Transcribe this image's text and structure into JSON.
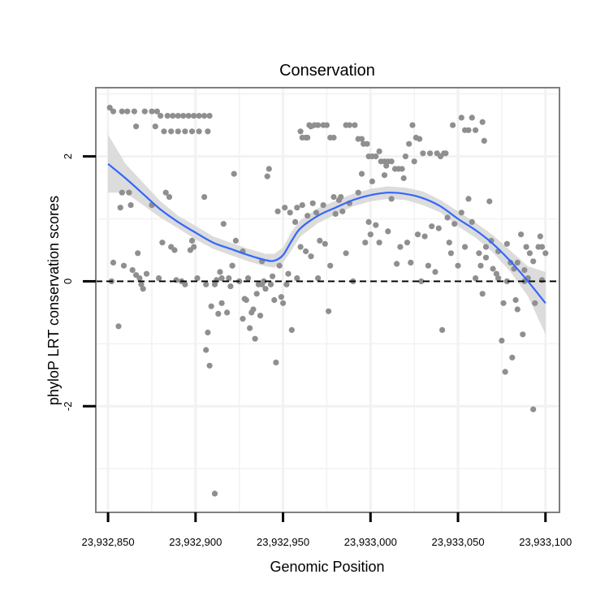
{
  "chart_data": {
    "type": "scatter",
    "title": "Conservation",
    "xlabel": "Genomic Position",
    "ylabel": "phyloP LRT conservation scores",
    "xlim": [
      23932843,
      23933108
    ],
    "ylim": [
      -3.7,
      3.1
    ],
    "x_ticks": [
      23932850,
      23932900,
      23932950,
      23933000,
      23933050,
      23933100
    ],
    "x_tick_labels": [
      "23,932,850",
      "23,932,900",
      "23,932,950",
      "23,933,000",
      "23,933,050",
      "23,933,100"
    ],
    "y_ticks": [
      -2,
      0,
      2
    ],
    "y_tick_labels": [
      "-2",
      "0",
      "2"
    ],
    "reference_line": {
      "y": 0,
      "style": "dashed",
      "color": "#000000"
    },
    "colors": {
      "points": "#8f8f8f",
      "smooth": "#3366ff",
      "ribbon": "#d6d6d6",
      "grid": "#f2f2f2",
      "border": "#7f7f7f"
    },
    "smooth": {
      "x": [
        23932850,
        23932860,
        23932870,
        23932880,
        23932890,
        23932900,
        23932910,
        23932920,
        23932930,
        23932940,
        23932945,
        23932950,
        23932955,
        23932960,
        23932970,
        23932980,
        23932990,
        23933000,
        23933010,
        23933020,
        23933030,
        23933040,
        23933050,
        23933060,
        23933070,
        23933080,
        23933090,
        23933100
      ],
      "y": [
        1.88,
        1.65,
        1.4,
        1.15,
        0.95,
        0.78,
        0.62,
        0.52,
        0.42,
        0.34,
        0.33,
        0.42,
        0.65,
        0.85,
        1.05,
        1.18,
        1.3,
        1.38,
        1.42,
        1.4,
        1.33,
        1.2,
        1.0,
        0.82,
        0.6,
        0.32,
        0.0,
        -0.35
      ],
      "lower": [
        1.42,
        1.42,
        1.22,
        1.02,
        0.85,
        0.67,
        0.52,
        0.42,
        0.32,
        0.24,
        0.22,
        0.3,
        0.5,
        0.72,
        0.93,
        1.07,
        1.2,
        1.28,
        1.32,
        1.3,
        1.22,
        1.1,
        0.88,
        0.7,
        0.46,
        0.15,
        -0.24,
        -0.85
      ],
      "upper": [
        2.35,
        1.88,
        1.58,
        1.28,
        1.05,
        0.89,
        0.72,
        0.62,
        0.52,
        0.44,
        0.44,
        0.54,
        0.8,
        0.98,
        1.17,
        1.29,
        1.4,
        1.48,
        1.52,
        1.5,
        1.44,
        1.3,
        1.12,
        0.94,
        0.74,
        0.49,
        0.24,
        0.15
      ]
    },
    "points": [
      [
        23932851,
        2.78
      ],
      [
        23932853,
        2.72
      ],
      [
        23932858,
        2.72
      ],
      [
        23932861,
        2.72
      ],
      [
        23932865,
        2.72
      ],
      [
        23932871,
        2.72
      ],
      [
        23932875,
        2.72
      ],
      [
        23932878,
        2.72
      ],
      [
        23932880,
        2.65
      ],
      [
        23932884,
        2.65
      ],
      [
        23932887,
        2.65
      ],
      [
        23932890,
        2.65
      ],
      [
        23932893,
        2.65
      ],
      [
        23932896,
        2.65
      ],
      [
        23932899,
        2.65
      ],
      [
        23932902,
        2.65
      ],
      [
        23932905,
        2.65
      ],
      [
        23932908,
        2.65
      ],
      [
        23932866,
        2.48
      ],
      [
        23932877,
        2.48
      ],
      [
        23932882,
        2.4
      ],
      [
        23932886,
        2.4
      ],
      [
        23932890,
        2.4
      ],
      [
        23932894,
        2.4
      ],
      [
        23932898,
        2.4
      ],
      [
        23932902,
        2.4
      ],
      [
        23932907,
        2.4
      ],
      [
        23932853,
        0.3
      ],
      [
        23932852,
        0.0
      ],
      [
        23932856,
        -0.72
      ],
      [
        23932857,
        1.18
      ],
      [
        23932858,
        1.42
      ],
      [
        23932859,
        0.25
      ],
      [
        23932862,
        1.42
      ],
      [
        23932863,
        1.22
      ],
      [
        23932864,
        0.18
      ],
      [
        23932866,
        0.1
      ],
      [
        23932867,
        0.45
      ],
      [
        23932868,
        0.05
      ],
      [
        23932869,
        -0.05
      ],
      [
        23932870,
        -0.12
      ],
      [
        23932872,
        0.12
      ],
      [
        23932875,
        1.22
      ],
      [
        23932879,
        0.05
      ],
      [
        23932881,
        0.62
      ],
      [
        23932883,
        1.42
      ],
      [
        23932885,
        1.35
      ],
      [
        23932886,
        0.55
      ],
      [
        23932888,
        0.5
      ],
      [
        23932889,
        0.02
      ],
      [
        23932892,
        0.0
      ],
      [
        23932894,
        -0.05
      ],
      [
        23932897,
        0.5
      ],
      [
        23932899,
        0.55
      ],
      [
        23932901,
        0.05
      ],
      [
        23932905,
        1.35
      ],
      [
        23932906,
        -1.1
      ],
      [
        23932907,
        -0.82
      ],
      [
        23932908,
        -1.35
      ],
      [
        23932909,
        -0.4
      ],
      [
        23932911,
        -0.05
      ],
      [
        23932912,
        0.02
      ],
      [
        23932913,
        -0.52
      ],
      [
        23932914,
        0.15
      ],
      [
        23932915,
        -0.35
      ],
      [
        23932916,
        0.92
      ],
      [
        23932918,
        -0.5
      ],
      [
        23932919,
        0.05
      ],
      [
        23932920,
        -0.08
      ],
      [
        23932921,
        0.25
      ],
      [
        23932922,
        1.72
      ],
      [
        23932923,
        0.65
      ],
      [
        23932925,
        0.0
      ],
      [
        23932927,
        -0.6
      ],
      [
        23932928,
        -0.28
      ],
      [
        23932929,
        -0.3
      ],
      [
        23932930,
        0.05
      ],
      [
        23932931,
        -0.75
      ],
      [
        23932932,
        -0.5
      ],
      [
        23932933,
        -0.45
      ],
      [
        23932934,
        -0.92
      ],
      [
        23932935,
        -0.2
      ],
      [
        23932936,
        -0.05
      ],
      [
        23932937,
        -0.55
      ],
      [
        23932938,
        -0.05
      ],
      [
        23932939,
        0.0
      ],
      [
        23932940,
        -0.12
      ],
      [
        23932941,
        1.68
      ],
      [
        23932942,
        1.8
      ],
      [
        23932943,
        -0.05
      ],
      [
        23932944,
        0.08
      ],
      [
        23932945,
        -0.3
      ],
      [
        23932946,
        -1.3
      ],
      [
        23932947,
        1.12
      ],
      [
        23932948,
        0.25
      ],
      [
        23932949,
        -0.25
      ],
      [
        23932950,
        -0.35
      ],
      [
        23932951,
        1.18
      ],
      [
        23932952,
        -0.05
      ],
      [
        23932953,
        0.12
      ],
      [
        23932954,
        1.1
      ],
      [
        23932955,
        -0.78
      ],
      [
        23932957,
        0.95
      ],
      [
        23932958,
        0.05
      ],
      [
        23932960,
        0.55
      ],
      [
        23932961,
        1.22
      ],
      [
        23932963,
        0.48
      ],
      [
        23932964,
        1.05
      ],
      [
        23932966,
        0.4
      ],
      [
        23932967,
        1.25
      ],
      [
        23932969,
        1.1
      ],
      [
        23932970,
        0.05
      ],
      [
        23932971,
        0.65
      ],
      [
        23932973,
        1.22
      ],
      [
        23932974,
        0.6
      ],
      [
        23932976,
        -0.48
      ],
      [
        23932977,
        0.25
      ],
      [
        23932979,
        1.35
      ],
      [
        23932980,
        1.08
      ],
      [
        23932982,
        1.3
      ],
      [
        23932984,
        1.12
      ],
      [
        23932986,
        0.45
      ],
      [
        23932988,
        1.25
      ],
      [
        23932990,
        0.0
      ],
      [
        23932993,
        1.42
      ],
      [
        23932995,
        1.72
      ],
      [
        23932997,
        0.62
      ],
      [
        23932999,
        0.95
      ],
      [
        23933001,
        1.6
      ],
      [
        23933003,
        0.9
      ],
      [
        23933005,
        0.62
      ],
      [
        23933008,
        1.7
      ],
      [
        23933010,
        0.8
      ],
      [
        23933012,
        1.32
      ],
      [
        23933015,
        0.28
      ],
      [
        23933017,
        0.55
      ],
      [
        23933019,
        1.65
      ],
      [
        23933021,
        0.62
      ],
      [
        23933023,
        0.3
      ],
      [
        23933025,
        1.92
      ],
      [
        23933027,
        0.75
      ],
      [
        23933029,
        0.0
      ],
      [
        23933031,
        0.72
      ],
      [
        23933033,
        0.25
      ],
      [
        23933035,
        0.88
      ],
      [
        23933037,
        0.15
      ],
      [
        23933039,
        0.85
      ],
      [
        23933041,
        -0.78
      ],
      [
        23933042,
        2.05
      ],
      [
        23933044,
        1.02
      ],
      [
        23933046,
        0.45
      ],
      [
        23933048,
        0.92
      ],
      [
        23933050,
        0.25
      ],
      [
        23933052,
        1.1
      ],
      [
        23933054,
        0.55
      ],
      [
        23933056,
        1.32
      ],
      [
        23933058,
        0.95
      ],
      [
        23933060,
        0.05
      ],
      [
        23933062,
        0.45
      ],
      [
        23933063,
        0.25
      ],
      [
        23933064,
        -0.2
      ],
      [
        23933066,
        0.38
      ],
      [
        23933068,
        1.28
      ],
      [
        23933069,
        0.65
      ],
      [
        23933070,
        0.2
      ],
      [
        23933072,
        0.12
      ],
      [
        23933073,
        0.48
      ],
      [
        23933075,
        -0.95
      ],
      [
        23933076,
        -0.35
      ],
      [
        23933077,
        -1.45
      ],
      [
        23933078,
        0.0
      ],
      [
        23933080,
        0.3
      ],
      [
        23933081,
        -1.22
      ],
      [
        23933082,
        0.2
      ],
      [
        23933083,
        -0.3
      ],
      [
        23933084,
        -0.45
      ],
      [
        23933086,
        0.75
      ],
      [
        23933087,
        -0.85
      ],
      [
        23933088,
        0.0
      ],
      [
        23933089,
        0.55
      ],
      [
        23933090,
        0.05
      ],
      [
        23933091,
        0.45
      ],
      [
        23933093,
        -2.05
      ],
      [
        23933093,
        0.32
      ],
      [
        23933094,
        -0.35
      ],
      [
        23933097,
        0.72
      ],
      [
        23933098,
        0.55
      ],
      [
        23932906,
        -0.05
      ],
      [
        23932915,
        0.05
      ],
      [
        23932921,
        0.25
      ],
      [
        23932927,
        0.48
      ],
      [
        23932938,
        0.32
      ],
      [
        23932958,
        1.18
      ],
      [
        23932983,
        1.35
      ],
      [
        23932898,
        0.65
      ],
      [
        23932911,
        -3.4
      ],
      [
        23932960,
        2.4
      ],
      [
        23932961,
        2.3
      ],
      [
        23932963,
        2.3
      ],
      [
        23932964,
        2.3
      ],
      [
        23932965,
        2.5
      ],
      [
        23932966,
        2.48
      ],
      [
        23932968,
        2.5
      ],
      [
        23932970,
        2.5
      ],
      [
        23932973,
        2.5
      ],
      [
        23932975,
        2.5
      ],
      [
        23932977,
        2.3
      ],
      [
        23932979,
        2.3
      ],
      [
        23932986,
        2.5
      ],
      [
        23932988,
        2.5
      ],
      [
        23932991,
        2.5
      ],
      [
        23932993,
        2.28
      ],
      [
        23932995,
        2.28
      ],
      [
        23932996,
        2.2
      ],
      [
        23932998,
        2.2
      ],
      [
        23932999,
        2.0
      ],
      [
        23933001,
        2.0
      ],
      [
        23933003,
        2.0
      ],
      [
        23933005,
        2.08
      ],
      [
        23933006,
        1.92
      ],
      [
        23933008,
        1.92
      ],
      [
        23933010,
        1.92
      ],
      [
        23933012,
        1.92
      ],
      [
        23933014,
        1.8
      ],
      [
        23933016,
        1.8
      ],
      [
        23933018,
        1.8
      ],
      [
        23933020,
        2.0
      ],
      [
        23933022,
        2.2
      ],
      [
        23933024,
        2.5
      ],
      [
        23933026,
        2.3
      ],
      [
        23933028,
        2.28
      ],
      [
        23933030,
        2.05
      ],
      [
        23933034,
        2.05
      ],
      [
        23933038,
        2.05
      ],
      [
        23933040,
        2.0
      ],
      [
        23933043,
        2.05
      ],
      [
        23933047,
        2.5
      ],
      [
        23933052,
        2.62
      ],
      [
        23933054,
        2.42
      ],
      [
        23933056,
        2.42
      ],
      [
        23933058,
        2.62
      ],
      [
        23933060,
        2.42
      ],
      [
        23933064,
        2.55
      ],
      [
        23933065,
        2.25
      ],
      [
        23933000,
        0.75
      ],
      [
        23933009,
        1.85
      ],
      [
        23933045,
        0.62
      ],
      [
        23933066,
        0.55
      ],
      [
        23933073,
        0.05
      ],
      [
        23933078,
        0.6
      ],
      [
        23933084,
        0.3
      ],
      [
        23933088,
        0.18
      ],
      [
        23933096,
        0.55
      ],
      [
        23933098,
        0.02
      ],
      [
        23933100,
        0.45
      ]
    ]
  }
}
